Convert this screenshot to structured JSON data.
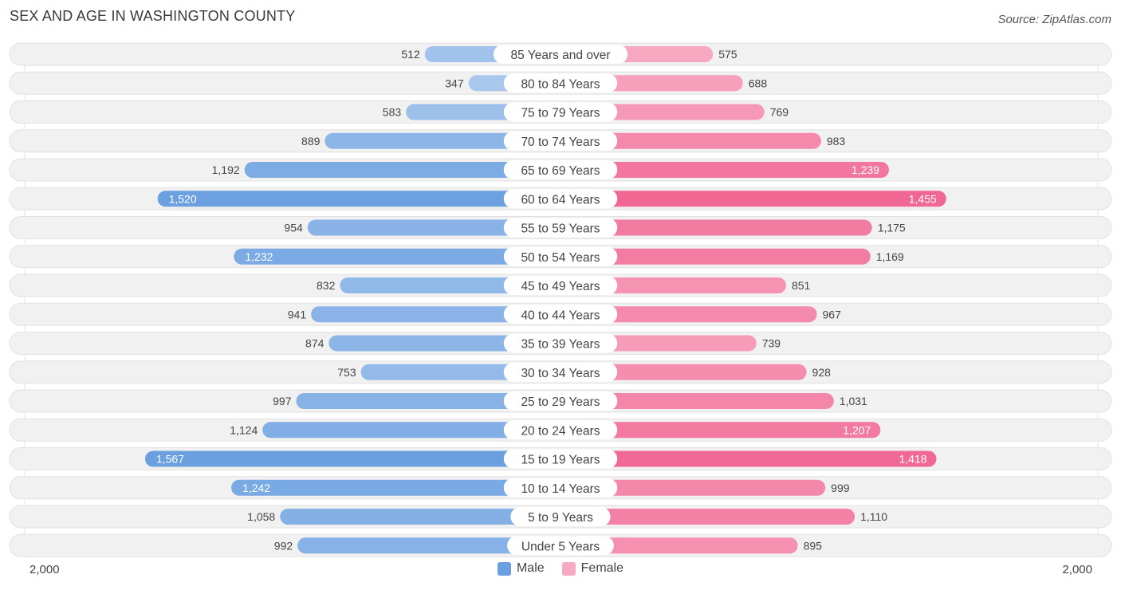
{
  "title": "SEX AND AGE IN WASHINGTON COUNTY",
  "source": "Source: ZipAtlas.com",
  "axis": {
    "left_label": "2,000",
    "right_label": "2,000"
  },
  "legend": {
    "male_label": "Male",
    "female_label": "Female"
  },
  "colors": {
    "male_light": "#a9c8ee",
    "male_dark": "#6a9fe0",
    "female_light": "#f8a9c2",
    "female_dark": "#f06794",
    "row_bg": "#f1f1f1"
  },
  "chart_data": {
    "type": "bar",
    "orientation": "horizontal-diverging",
    "title": "SEX AND AGE IN WASHINGTON COUNTY",
    "xlim": [
      -2000,
      2000
    ],
    "categories": [
      "85 Years and over",
      "80 to 84 Years",
      "75 to 79 Years",
      "70 to 74 Years",
      "65 to 69 Years",
      "60 to 64 Years",
      "55 to 59 Years",
      "50 to 54 Years",
      "45 to 49 Years",
      "40 to 44 Years",
      "35 to 39 Years",
      "30 to 34 Years",
      "25 to 29 Years",
      "20 to 24 Years",
      "15 to 19 Years",
      "10 to 14 Years",
      "5 to 9 Years",
      "Under 5 Years"
    ],
    "series": [
      {
        "name": "Male",
        "values": [
          512,
          347,
          583,
          889,
          1192,
          1520,
          954,
          1232,
          832,
          941,
          874,
          753,
          997,
          1124,
          1567,
          1242,
          1058,
          992
        ],
        "labels": [
          "512",
          "347",
          "583",
          "889",
          "1,192",
          "1,520",
          "954",
          "1,232",
          "832",
          "941",
          "874",
          "753",
          "997",
          "1,124",
          "1,567",
          "1,242",
          "1,058",
          "992"
        ]
      },
      {
        "name": "Female",
        "values": [
          575,
          688,
          769,
          983,
          1239,
          1455,
          1175,
          1169,
          851,
          967,
          739,
          928,
          1031,
          1207,
          1418,
          999,
          1110,
          895
        ],
        "labels": [
          "575",
          "688",
          "769",
          "983",
          "1,239",
          "1,455",
          "1,175",
          "1,169",
          "851",
          "967",
          "739",
          "928",
          "1,031",
          "1,207",
          "1,418",
          "999",
          "1,110",
          "895"
        ]
      }
    ]
  }
}
